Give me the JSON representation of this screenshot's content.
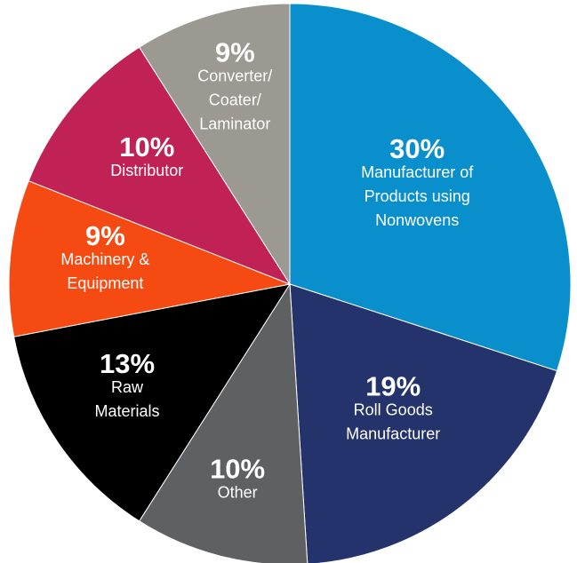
{
  "chart_data": {
    "type": "pie",
    "title": "",
    "slices": [
      {
        "percent_label": "30%",
        "value": 30,
        "name": "Manufacturer of Products using Nonwovens",
        "name_lines": [
          "Manufacturer of",
          "Products using",
          "Nonwovens"
        ],
        "color": "#0a8fcd"
      },
      {
        "percent_label": "19%",
        "value": 19,
        "name": "Roll Goods Manufacturer",
        "name_lines": [
          "Roll Goods",
          "Manufacturer"
        ],
        "color": "#24336b"
      },
      {
        "percent_label": "10%",
        "value": 10,
        "name": "Other",
        "name_lines": [
          "Other"
        ],
        "color": "#5f6062"
      },
      {
        "percent_label": "13%",
        "value": 13,
        "name": "Raw Materials",
        "name_lines": [
          "Raw",
          "Materials"
        ],
        "color": "#000000"
      },
      {
        "percent_label": "9%",
        "value": 9,
        "name": "Machinery & Equipment",
        "name_lines": [
          "Machinery &",
          "Equipment"
        ],
        "color": "#f54b12"
      },
      {
        "percent_label": "10%",
        "value": 10,
        "name": "Distributor",
        "name_lines": [
          "Distributor"
        ],
        "color": "#c02255"
      },
      {
        "percent_label": "9%",
        "value": 9,
        "name": "Converter/ Coater/ Laminator",
        "name_lines": [
          "Converter/",
          "Coater/",
          "Laminator"
        ],
        "color": "#9c9993"
      }
    ]
  }
}
